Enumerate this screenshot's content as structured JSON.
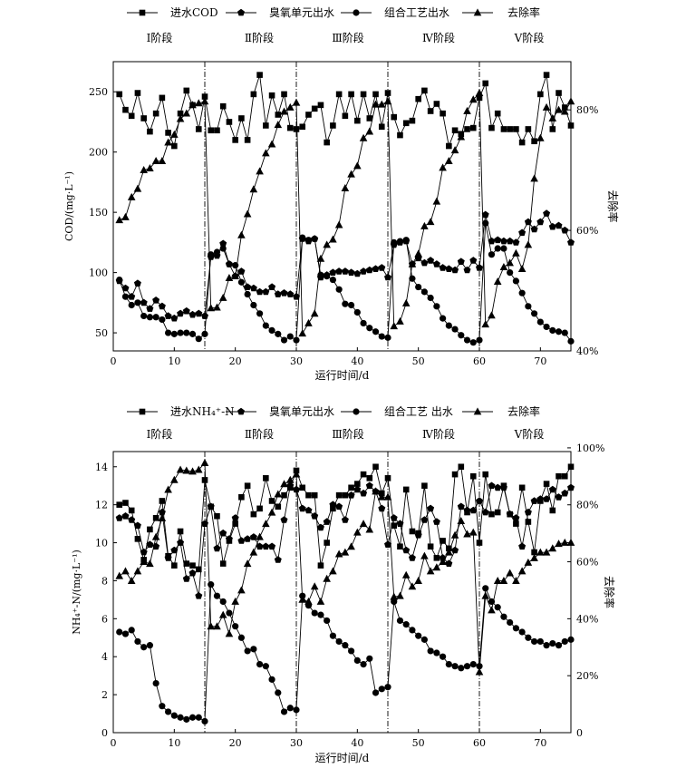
{
  "chart_data": [
    {
      "type": "line",
      "legend": [
        "进水COD",
        "臭氧单元出水",
        "组合工艺出水",
        "去除率"
      ],
      "stage_labels": [
        "Ⅰ阶段",
        "Ⅱ阶段",
        "Ⅲ阶段",
        "Ⅳ阶段",
        "Ⅴ阶段"
      ],
      "stage_boundaries": [
        15,
        30,
        45,
        60
      ],
      "xlabel": "运行时间/d",
      "ylabel": "COD/(mg·L⁻¹)",
      "y2label": "去除率",
      "xlim": [
        0,
        75
      ],
      "ylim": [
        35,
        275
      ],
      "y2lim": [
        40,
        88
      ],
      "xticks": [
        0,
        10,
        20,
        30,
        40,
        50,
        60,
        70
      ],
      "yticks": [
        50,
        100,
        150,
        200,
        250
      ],
      "y2ticks": [
        40,
        60,
        80
      ],
      "y2_tick_labels": [
        "40%",
        "60%",
        "80%"
      ],
      "x": [
        1,
        2,
        3,
        4,
        5,
        6,
        7,
        8,
        9,
        10,
        11,
        12,
        13,
        14,
        15,
        16,
        17,
        18,
        19,
        20,
        21,
        22,
        23,
        24,
        25,
        26,
        27,
        28,
        29,
        30,
        31,
        32,
        33,
        34,
        35,
        36,
        37,
        38,
        39,
        40,
        41,
        42,
        43,
        44,
        45,
        46,
        47,
        48,
        49,
        50,
        51,
        52,
        53,
        54,
        55,
        56,
        57,
        58,
        59,
        60,
        61,
        62,
        63,
        64,
        65,
        66,
        67,
        68,
        69,
        70,
        71,
        72,
        73,
        74,
        75
      ],
      "series": [
        {
          "name": "进水COD",
          "marker": "square",
          "axis": "left",
          "values": [
            248,
            235,
            230,
            249,
            228,
            217,
            232,
            245,
            216,
            205,
            232,
            251,
            239,
            219,
            246,
            218,
            218,
            238,
            225,
            210,
            228,
            210,
            248,
            264,
            222,
            247,
            231,
            248,
            220,
            219,
            221,
            231,
            236,
            239,
            208,
            222,
            248,
            230,
            248,
            226,
            248,
            228,
            248,
            221,
            249,
            229,
            214,
            224,
            226,
            244,
            251,
            234,
            240,
            232,
            205,
            218,
            215,
            219,
            220,
            245,
            257,
            220,
            232,
            219,
            219,
            219,
            208,
            219,
            209,
            248,
            264,
            219,
            249,
            237,
            222
          ]
        },
        {
          "name": "臭氧单元出水",
          "marker": "pentagon",
          "axis": "left",
          "values": [
            93,
            87,
            80,
            91,
            75,
            70,
            77,
            72,
            64,
            62,
            66,
            68,
            65,
            66,
            64,
            113,
            114,
            124,
            107,
            97,
            101,
            88,
            87,
            84,
            84,
            88,
            82,
            83,
            82,
            80,
            128,
            126,
            128,
            96,
            98,
            100,
            101,
            101,
            100,
            99,
            101,
            102,
            103,
            104,
            96,
            123,
            125,
            126,
            107,
            112,
            108,
            110,
            107,
            104,
            103,
            102,
            109,
            102,
            110,
            104,
            148,
            126,
            127,
            126,
            126,
            125,
            133,
            142,
            136,
            142,
            149,
            138,
            139,
            135,
            125
          ]
        },
        {
          "name": "组合工艺出水",
          "marker": "circle",
          "axis": "left",
          "values": [
            94,
            80,
            73,
            75,
            64,
            63,
            63,
            61,
            50,
            49,
            50,
            50,
            49,
            45,
            49,
            115,
            117,
            120,
            107,
            106,
            92,
            82,
            73,
            66,
            56,
            52,
            49,
            44,
            47,
            44,
            129,
            127,
            128,
            98,
            97,
            94,
            86,
            74,
            73,
            67,
            58,
            54,
            51,
            47,
            46,
            125,
            126,
            127,
            95,
            88,
            84,
            79,
            72,
            62,
            56,
            53,
            48,
            44,
            42,
            44,
            141,
            115,
            120,
            120,
            100,
            93,
            83,
            72,
            66,
            59,
            55,
            52,
            51,
            50,
            43
          ]
        },
        {
          "name": "去除率",
          "marker": "triangle",
          "axis": "right",
          "values": [
            61.7,
            62.2,
            65.5,
            66.9,
            70.0,
            70.3,
            71.5,
            71.5,
            74.6,
            75.9,
            78.5,
            79.4,
            80.8,
            81.1,
            81.4,
            47.1,
            47.2,
            48.8,
            52.1,
            52.4,
            59.2,
            62.7,
            66.8,
            69.8,
            72.8,
            74.3,
            77.5,
            79.7,
            80.4,
            81.2,
            42.9,
            44.6,
            46.2,
            55.3,
            57.6,
            58.5,
            60.9,
            67.0,
            69.3,
            70.7,
            75.3,
            76.4,
            80.9,
            80.9,
            81.4,
            44.1,
            44.9,
            47.9,
            54.4,
            56.1,
            60.7,
            61.4,
            64.8,
            70.4,
            71.5,
            73.3,
            75.5,
            79.8,
            81.7,
            82.8,
            44.4,
            45.9,
            51.5,
            53.9,
            54.6,
            56.2,
            53.6,
            57.6,
            68.6,
            75.3,
            80.4,
            78.6,
            80.0,
            79.7,
            81.4
          ]
        }
      ]
    },
    {
      "type": "line",
      "legend": [
        "进水NH₄⁺-N",
        "臭氧单元出水",
        "组合工艺 出水",
        "去除率"
      ],
      "stage_labels": [
        "Ⅰ阶段",
        "Ⅱ阶段",
        "Ⅲ阶段",
        "Ⅳ阶段",
        "Ⅴ阶段"
      ],
      "stage_boundaries": [
        15,
        30,
        45,
        60
      ],
      "xlabel": "运行时间/d",
      "ylabel": "NH₄⁺-N/(mg·L⁻¹)",
      "y2label": "去除率",
      "xlim": [
        0,
        75
      ],
      "ylim": [
        0,
        14.8
      ],
      "y2lim": [
        0,
        98.7
      ],
      "xticks": [
        0,
        10,
        20,
        30,
        40,
        50,
        60,
        70
      ],
      "yticks": [
        0,
        2,
        4,
        6,
        8,
        10,
        12,
        14
      ],
      "y2ticks": [
        0,
        20,
        40,
        60,
        80,
        100
      ],
      "y2_tick_labels": [
        "0",
        "20%",
        "40%",
        "60%",
        "80%",
        "100%"
      ],
      "x": [
        1,
        2,
        3,
        4,
        5,
        6,
        7,
        8,
        9,
        10,
        11,
        12,
        13,
        14,
        15,
        16,
        17,
        18,
        19,
        20,
        21,
        22,
        23,
        24,
        25,
        26,
        27,
        28,
        29,
        30,
        31,
        32,
        33,
        34,
        35,
        36,
        37,
        38,
        39,
        40,
        41,
        42,
        43,
        44,
        45,
        46,
        47,
        48,
        49,
        50,
        51,
        52,
        53,
        54,
        55,
        56,
        57,
        58,
        59,
        60,
        61,
        62,
        63,
        64,
        65,
        66,
        67,
        68,
        69,
        70,
        71,
        72,
        73,
        74,
        75
      ],
      "series": [
        {
          "name": "进水NH₄⁺-N",
          "marker": "square",
          "axis": "left",
          "values": [
            12.0,
            12.1,
            11.7,
            10.2,
            9.1,
            10.7,
            11.3,
            12.2,
            9.3,
            8.8,
            10.6,
            8.9,
            8.8,
            8.6,
            13.3,
            11.9,
            11.4,
            8.9,
            10.1,
            11.0,
            12.4,
            13.0,
            11.5,
            11.8,
            13.4,
            12.2,
            11.9,
            12.5,
            12.9,
            13.8,
            12.9,
            12.5,
            12.5,
            8.8,
            10.0,
            11.8,
            12.5,
            12.5,
            12.9,
            13.1,
            13.6,
            13.4,
            14.0,
            12.6,
            13.4,
            10.9,
            9.8,
            12.8,
            10.6,
            10.5,
            13.0,
            9.8,
            9.2,
            10.1,
            9.7,
            13.6,
            14.0,
            11.6,
            13.5,
            10.0,
            13.6,
            11.5,
            11.6,
            13.0,
            11.5,
            11.0,
            12.9,
            11.1,
            9.5,
            12.2,
            13.1,
            11.7,
            13.5,
            13.5,
            14.0
          ]
        },
        {
          "name": "臭氧单元出水",
          "marker": "pentagon",
          "axis": "left",
          "values": [
            11.3,
            11.4,
            11.2,
            10.9,
            9.5,
            9.9,
            9.8,
            11.6,
            9.2,
            9.6,
            10.0,
            8.1,
            8.4,
            7.2,
            11.0,
            11.9,
            9.7,
            10.5,
            10.2,
            11.3,
            10.1,
            10.2,
            10.3,
            9.8,
            9.8,
            9.8,
            9.1,
            11.2,
            13.0,
            12.8,
            11.8,
            11.7,
            11.4,
            10.8,
            11.1,
            12.0,
            11.9,
            11.2,
            12.5,
            12.8,
            12.6,
            13.0,
            12.7,
            11.8,
            9.9,
            11.3,
            11.0,
            9.6,
            9.2,
            10.4,
            11.2,
            11.8,
            11.1,
            9.2,
            8.9,
            9.6,
            11.9,
            11.7,
            11.7,
            12.2,
            11.6,
            13.0,
            12.9,
            12.9,
            11.5,
            11.3,
            9.8,
            11.6,
            12.2,
            12.3,
            12.3,
            12.8,
            12.4,
            12.6,
            12.9
          ]
        },
        {
          "name": "组合工艺出水",
          "marker": "circle",
          "axis": "left",
          "values": [
            5.3,
            5.2,
            5.4,
            4.8,
            4.5,
            4.6,
            2.6,
            1.4,
            1.1,
            0.9,
            0.8,
            0.7,
            0.8,
            0.8,
            0.6,
            7.8,
            7.2,
            6.9,
            6.3,
            5.6,
            5.0,
            4.3,
            4.4,
            3.6,
            3.5,
            2.8,
            2.1,
            1.1,
            1.3,
            1.2,
            7.2,
            6.7,
            6.3,
            6.2,
            5.9,
            5.1,
            4.8,
            4.6,
            4.3,
            3.8,
            3.6,
            3.9,
            2.1,
            2.3,
            2.4,
            6.9,
            5.9,
            5.7,
            5.4,
            5.1,
            4.9,
            4.3,
            4.2,
            4.0,
            3.6,
            3.5,
            3.4,
            3.5,
            3.6,
            3.5,
            7.6,
            6.9,
            6.6,
            6.1,
            5.8,
            5.5,
            5.3,
            5.0,
            4.8,
            4.8,
            4.6,
            4.7,
            4.6,
            4.8,
            4.9
          ]
        },
        {
          "name": "去除率",
          "marker": "triangle",
          "axis": "right",
          "values": [
            55.0,
            56.7,
            53.3,
            56.7,
            60.0,
            59.3,
            68.7,
            75.3,
            85.3,
            88.7,
            92.3,
            92.0,
            91.7,
            92.3,
            94.7,
            37.3,
            37.3,
            41.3,
            34.7,
            46.0,
            50.0,
            59.3,
            63.3,
            68.7,
            73.3,
            77.3,
            83.7,
            87.3,
            88.7,
            90.7,
            46.7,
            46.0,
            51.3,
            46.0,
            54.0,
            56.7,
            62.7,
            63.3,
            65.3,
            70.3,
            73.3,
            71.3,
            84.7,
            82.7,
            82.7,
            47.7,
            48.0,
            55.3,
            51.3,
            53.3,
            62.0,
            56.7,
            58.0,
            60.0,
            63.3,
            69.3,
            74.3,
            69.7,
            70.3,
            21.3,
            48.0,
            43.0,
            53.3,
            53.3,
            56.0,
            53.3,
            56.7,
            59.7,
            61.3,
            63.3,
            63.3,
            64.7,
            66.3,
            66.7,
            66.7
          ]
        }
      ]
    }
  ]
}
